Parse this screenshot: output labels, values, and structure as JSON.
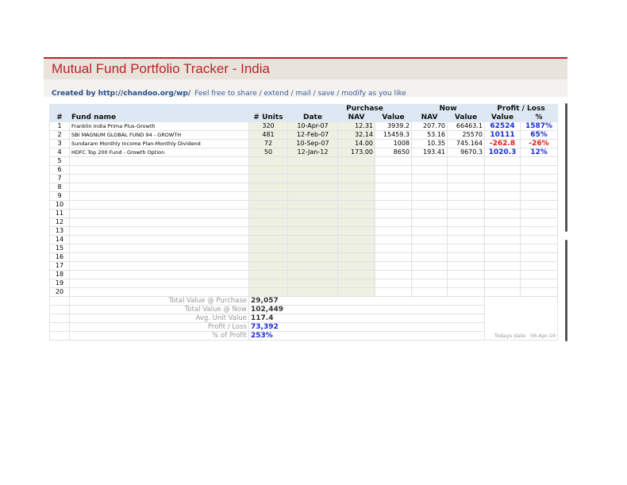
{
  "title": "Mutual Fund Portfolio Tracker - India",
  "credit": "Created by http://chandoo.org/wp/",
  "tagline": "Feel free to share / extend / mail / save / modify as you like",
  "header": {
    "purchase": "Purchase",
    "now": "Now",
    "pl": "Profit / Loss",
    "num": "#",
    "fund": "Fund name",
    "units": "# Units",
    "date": "Date",
    "nav": "NAV",
    "value": "Value",
    "now_nav": "NAV",
    "now_value": "Value",
    "pl_value": "Value",
    "pl_pct": "%"
  },
  "rows": [
    {
      "n": "1",
      "fund": "Franklin India Prima Plus-Growth",
      "units": "320",
      "date": "10-Apr-07",
      "nav": "12.31",
      "value": "3939.2",
      "now_nav": "207.70",
      "now_value": "66463.1",
      "pl_value": "62524",
      "pl_pct": "1587%",
      "neg": false
    },
    {
      "n": "2",
      "fund": "SBI MAGNUM GLOBAL FUND 94 - GROWTH",
      "units": "481",
      "date": "12-Feb-07",
      "nav": "32.14",
      "value": "15459.3",
      "now_nav": "53.16",
      "now_value": "25570",
      "pl_value": "10111",
      "pl_pct": "65%",
      "neg": false
    },
    {
      "n": "3",
      "fund": "Sundaram  Monthly Income Plan-Monthly Dividend",
      "units": "72",
      "date": "10-Sep-07",
      "nav": "14.00",
      "value": "1008",
      "now_nav": "10.35",
      "now_value": "745.164",
      "pl_value": "-262.8",
      "pl_pct": "-26%",
      "neg": true
    },
    {
      "n": "4",
      "fund": "HDFC Top 200 Fund - Growth Option",
      "units": "50",
      "date": "12-Jan-12",
      "nav": "173.00",
      "value": "8650",
      "now_nav": "193.41",
      "now_value": "9670.3",
      "pl_value": "1020.3",
      "pl_pct": "12%",
      "neg": false
    },
    {
      "n": "5"
    },
    {
      "n": "6"
    },
    {
      "n": "7"
    },
    {
      "n": "8"
    },
    {
      "n": "9"
    },
    {
      "n": "10"
    },
    {
      "n": "11"
    },
    {
      "n": "12"
    },
    {
      "n": "13"
    },
    {
      "n": "14"
    },
    {
      "n": "15"
    },
    {
      "n": "16"
    },
    {
      "n": "17"
    },
    {
      "n": "18"
    },
    {
      "n": "19"
    },
    {
      "n": "20"
    }
  ],
  "summary": [
    {
      "label": "Total Value @ Purchase",
      "value": "29,057",
      "blue": false
    },
    {
      "label": "Total Value @ Now",
      "value": "102,449",
      "blue": false
    },
    {
      "label": "Avg. Unit Value",
      "value": "117.4",
      "blue": false
    },
    {
      "label": "Profit / Loss",
      "value": "73,392",
      "blue": true
    },
    {
      "label": "% of Profit",
      "value": "253%",
      "blue": true
    }
  ],
  "todays_date_label": "Todays date:",
  "todays_date": "06-Apr-19"
}
